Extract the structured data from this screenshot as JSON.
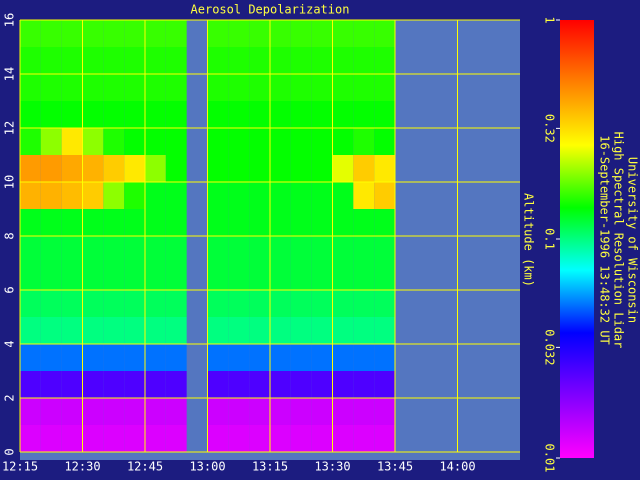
{
  "chart_data": {
    "type": "heatmap",
    "title": "Aerosol Depolarization",
    "y_label": "Altitude (km)",
    "notes": [
      "University of Wisconsin",
      "High Spectral Resolution Lidar",
      "16-September-1996 13:48:32 UT"
    ],
    "x_edges": [
      735,
      740,
      745,
      750,
      755,
      760,
      765,
      770,
      775,
      780,
      785,
      790,
      795,
      800,
      805,
      810,
      815,
      820,
      825
    ],
    "y_edges": [
      0,
      1,
      2,
      3,
      4,
      5,
      6,
      7,
      8,
      9,
      10,
      11,
      12,
      13,
      14,
      15,
      16
    ],
    "z": [
      [
        0.012,
        0.012,
        0.012,
        0.012,
        0.012,
        0.012,
        0.012,
        0.012,
        null,
        0.012,
        0.012,
        0.012,
        0.012,
        0.012,
        0.012,
        0.012,
        0.012,
        0.012
      ],
      [
        0.013,
        0.013,
        0.013,
        0.013,
        0.013,
        0.013,
        0.013,
        0.013,
        null,
        0.013,
        0.013,
        0.013,
        0.013,
        0.013,
        0.013,
        0.013,
        0.013,
        0.013
      ],
      [
        0.025,
        0.025,
        0.025,
        0.025,
        0.025,
        0.025,
        0.025,
        0.025,
        null,
        0.025,
        0.025,
        0.025,
        0.025,
        0.025,
        0.025,
        0.025,
        0.025,
        0.025
      ],
      [
        0.05,
        0.05,
        0.05,
        0.05,
        0.05,
        0.05,
        0.05,
        0.05,
        null,
        0.05,
        0.05,
        0.05,
        0.05,
        0.05,
        0.05,
        0.05,
        0.05,
        0.05
      ],
      [
        0.1,
        0.1,
        0.1,
        0.1,
        0.1,
        0.1,
        0.1,
        0.1,
        null,
        0.1,
        0.1,
        0.1,
        0.1,
        0.1,
        0.1,
        0.1,
        0.1,
        0.1
      ],
      [
        0.11,
        0.11,
        0.11,
        0.11,
        0.11,
        0.11,
        0.11,
        0.11,
        null,
        0.11,
        0.11,
        0.11,
        0.11,
        0.11,
        0.11,
        0.11,
        0.11,
        0.11
      ],
      [
        0.12,
        0.12,
        0.12,
        0.12,
        0.12,
        0.12,
        0.12,
        0.12,
        null,
        0.12,
        0.12,
        0.12,
        0.12,
        0.12,
        0.12,
        0.12,
        0.12,
        0.12
      ],
      [
        0.12,
        0.12,
        0.12,
        0.12,
        0.12,
        0.12,
        0.12,
        0.12,
        null,
        0.12,
        0.12,
        0.12,
        0.12,
        0.12,
        0.12,
        0.12,
        0.12,
        0.12
      ],
      [
        0.13,
        0.13,
        0.13,
        0.13,
        0.13,
        0.13,
        0.13,
        0.13,
        null,
        0.13,
        0.13,
        0.13,
        0.13,
        0.13,
        0.13,
        0.13,
        0.13,
        0.13
      ],
      [
        0.4,
        0.4,
        0.38,
        0.35,
        0.2,
        0.15,
        0.13,
        0.13,
        null,
        0.13,
        0.13,
        0.13,
        0.13,
        0.13,
        0.13,
        0.13,
        0.3,
        0.35
      ],
      [
        0.45,
        0.45,
        0.42,
        0.4,
        0.35,
        0.3,
        0.2,
        0.14,
        null,
        0.14,
        0.14,
        0.14,
        0.14,
        0.14,
        0.14,
        0.25,
        0.35,
        0.3
      ],
      [
        0.15,
        0.2,
        0.3,
        0.2,
        0.15,
        0.14,
        0.14,
        0.14,
        null,
        0.14,
        0.14,
        0.14,
        0.14,
        0.14,
        0.14,
        0.14,
        0.15,
        0.14
      ],
      [
        0.14,
        0.14,
        0.14,
        0.14,
        0.14,
        0.14,
        0.14,
        0.14,
        null,
        0.14,
        0.14,
        0.14,
        0.14,
        0.14,
        0.14,
        0.14,
        0.14,
        0.14
      ],
      [
        0.15,
        0.15,
        0.15,
        0.15,
        0.15,
        0.15,
        0.15,
        0.15,
        null,
        0.15,
        0.15,
        0.15,
        0.15,
        0.15,
        0.15,
        0.15,
        0.15,
        0.15
      ],
      [
        0.15,
        0.15,
        0.15,
        0.15,
        0.15,
        0.15,
        0.15,
        0.15,
        null,
        0.15,
        0.15,
        0.15,
        0.15,
        0.15,
        0.15,
        0.15,
        0.15,
        0.15
      ],
      [
        0.16,
        0.16,
        0.16,
        0.16,
        0.16,
        0.16,
        0.16,
        0.16,
        null,
        0.16,
        0.16,
        0.16,
        0.16,
        0.16,
        0.16,
        0.16,
        0.16,
        0.16
      ]
    ],
    "xlim": [
      735,
      855
    ],
    "xticks": [
      {
        "value": 735,
        "label": "12:15"
      },
      {
        "value": 750,
        "label": "12:30"
      },
      {
        "value": 765,
        "label": "12:45"
      },
      {
        "value": 780,
        "label": "13:00"
      },
      {
        "value": 795,
        "label": "13:15"
      },
      {
        "value": 810,
        "label": "13:30"
      },
      {
        "value": 825,
        "label": "13:45"
      },
      {
        "value": 840,
        "label": "14:00"
      }
    ],
    "ylim": [
      0,
      16
    ],
    "yticks": [
      0,
      2,
      4,
      6,
      8,
      10,
      12,
      14,
      16
    ],
    "clim": [
      0.01,
      1
    ],
    "cticks": [
      0.01,
      0.032,
      0.1,
      0.32,
      1
    ],
    "color_log": true,
    "colorscale": [
      "#ff00ff",
      "#8000ff",
      "#0000ff",
      "#00ffff",
      "#00ff00",
      "#ffff00",
      "#ff8000",
      "#ff0000"
    ],
    "grid": true,
    "grid_color": "#ffff00"
  }
}
